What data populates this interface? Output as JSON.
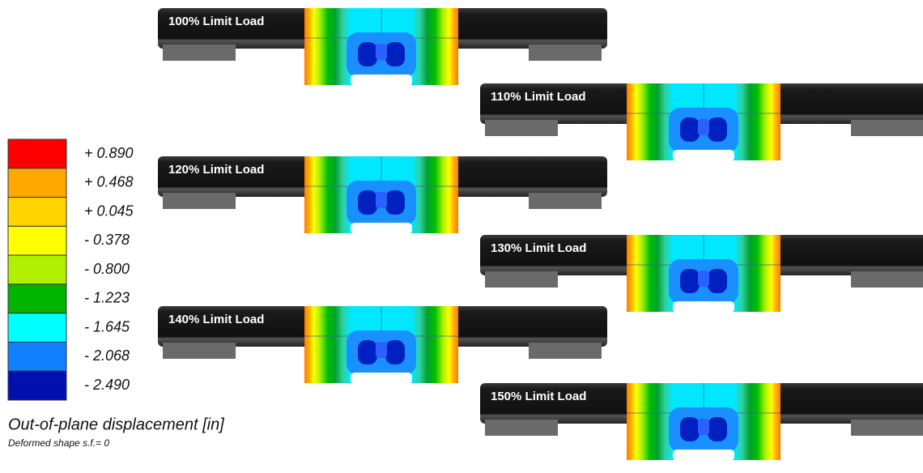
{
  "legend": {
    "labels": [
      "+ 0.890",
      "+ 0.468",
      "+ 0.045",
      "- 0.378",
      "- 0.800",
      "- 1.223",
      "- 1.645",
      "- 2.068",
      "- 2.490"
    ]
  },
  "caption": {
    "title": "Out-of-plane displacement [in]",
    "subtitle": "Deformed shape s.f.= 0"
  },
  "panels": [
    {
      "label": "100% Limit Load"
    },
    {
      "label": "110% Limit Load"
    },
    {
      "label": "120% Limit Load"
    },
    {
      "label": "130% Limit Load"
    },
    {
      "label": "140% Limit Load"
    },
    {
      "label": "150% Limit Load"
    }
  ]
}
